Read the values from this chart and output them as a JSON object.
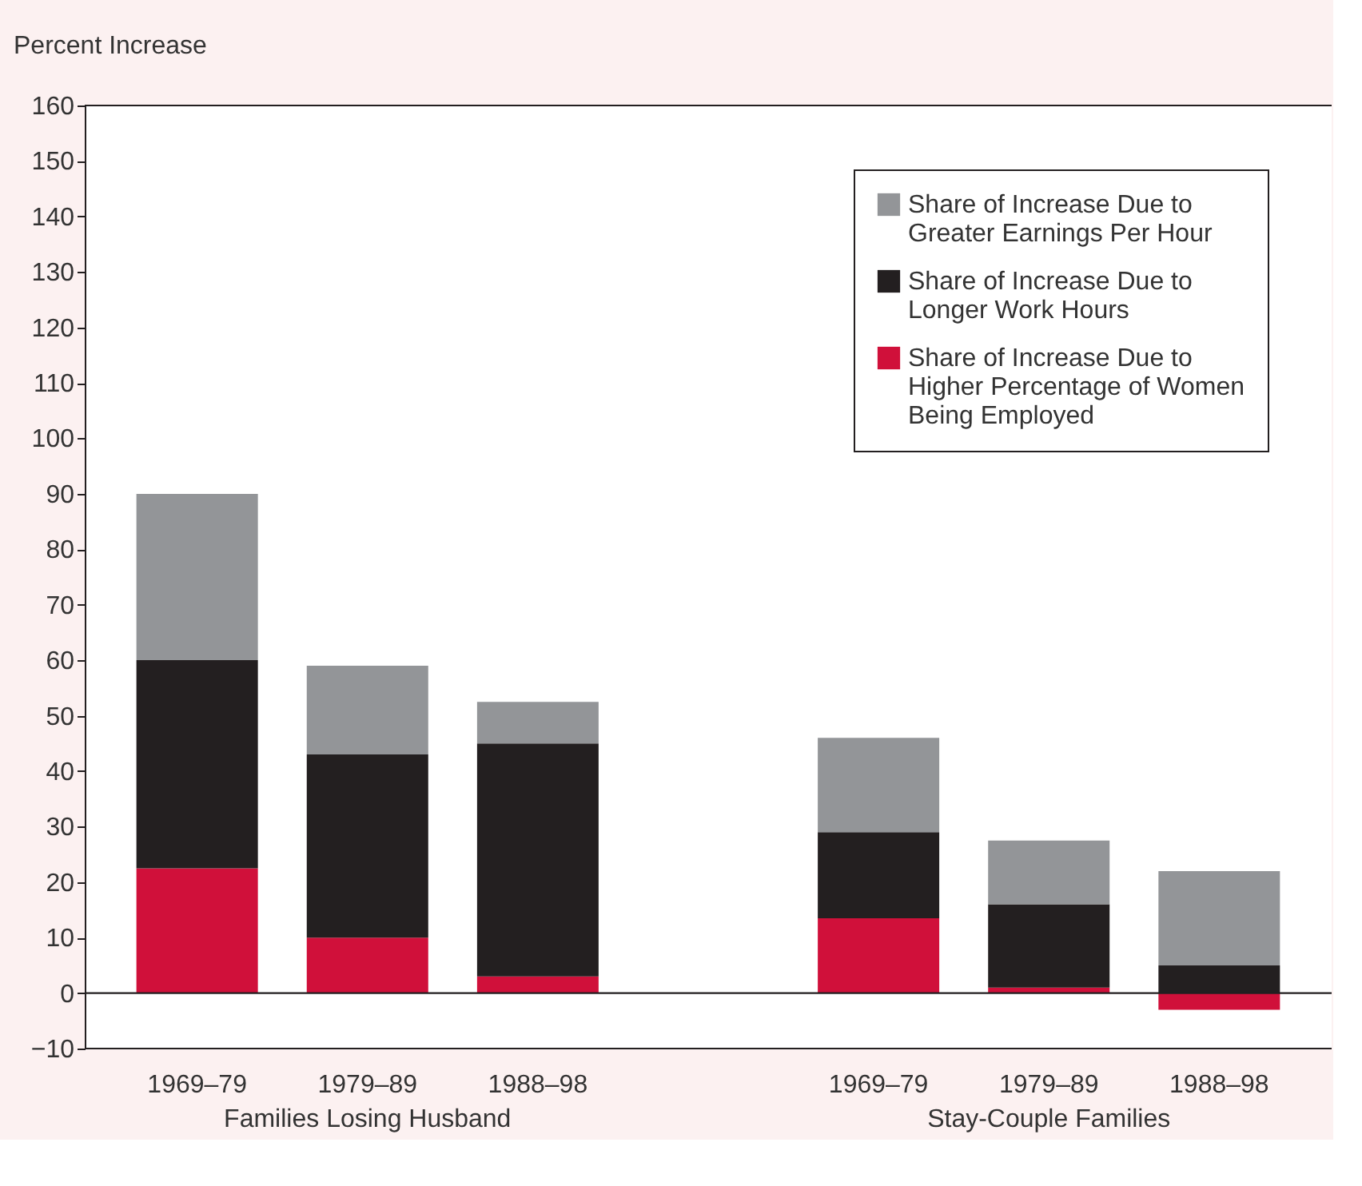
{
  "chart_data": {
    "type": "bar",
    "stacked": true,
    "ylabel": "Percent Increase",
    "categories": [
      "1969–79",
      "1979–89",
      "1988–98",
      null,
      "1969–79",
      "1979–89",
      "1988–98"
    ],
    "series": [
      {
        "name": "Share of Increase Due to Higher Percentage of Women Being Employed",
        "color": "#d0103a",
        "values": [
          22.5,
          10,
          3,
          null,
          13.5,
          1,
          -3
        ]
      },
      {
        "name": "Share of Increase Due to Longer Work Hours",
        "color": "#231f20",
        "values": [
          37.5,
          33,
          42,
          null,
          15.5,
          15,
          5
        ]
      },
      {
        "name": "Share of Increase Due to Greater Earnings Per Hour",
        "color": "#939598",
        "values": [
          30,
          16,
          7.5,
          null,
          17,
          11.5,
          17
        ]
      }
    ],
    "annotations": [
      "Families Losing Husband",
      "Stay-Couple Families"
    ],
    "ylim": [
      -10,
      160
    ],
    "yticks": [
      -10,
      0,
      10,
      20,
      30,
      40,
      50,
      60,
      70,
      80,
      90,
      100,
      110,
      120,
      130,
      140,
      150,
      160
    ],
    "ref_lines": [
      {
        "axis": "y",
        "value": 0
      }
    ],
    "grid": false,
    "legend": "top right"
  }
}
